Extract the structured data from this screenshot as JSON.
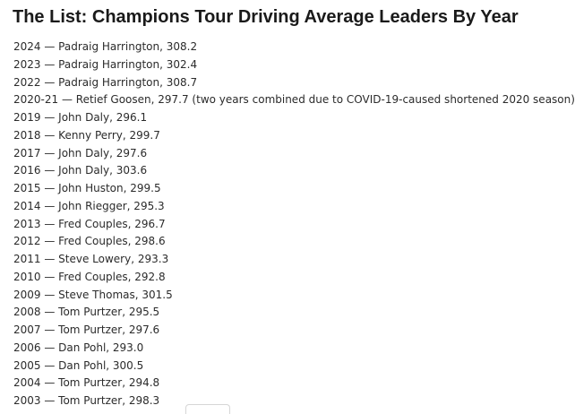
{
  "title": "The List: Champions Tour Driving Average Leaders By Year",
  "entries": [
    "2024 — Padraig Harrington, 308.2",
    "2023 — Padraig Harrington, 302.4",
    "2022 — Padraig Harrington, 308.7",
    "2020-21 — Retief Goosen, 297.7 (two years combined due to COVID-19-caused shortened 2020 season)",
    "2019 — John Daly, 296.1",
    "2018 — Kenny Perry, 299.7",
    "2017 — John Daly, 297.6",
    "2016 — John Daly, 303.6",
    "2015 — John Huston, 299.5",
    "2014 — John Riegger, 295.3",
    "2013 — Fred Couples, 296.7",
    "2012 — Fred Couples, 298.6",
    "2011 — Steve Lowery, 293.3",
    "2010 — Fred Couples, 292.8",
    "2009 — Steve Thomas, 301.5",
    "2008 — Tom Purtzer, 295.5",
    "2007 — Tom Purtzer, 297.6",
    "2006 — Dan Pohl, 293.0",
    "2005 — Dan Pohl, 300.5",
    "2004 — Tom Purtzer, 294.8",
    "2003 — Tom Purtzer, 298.3"
  ]
}
